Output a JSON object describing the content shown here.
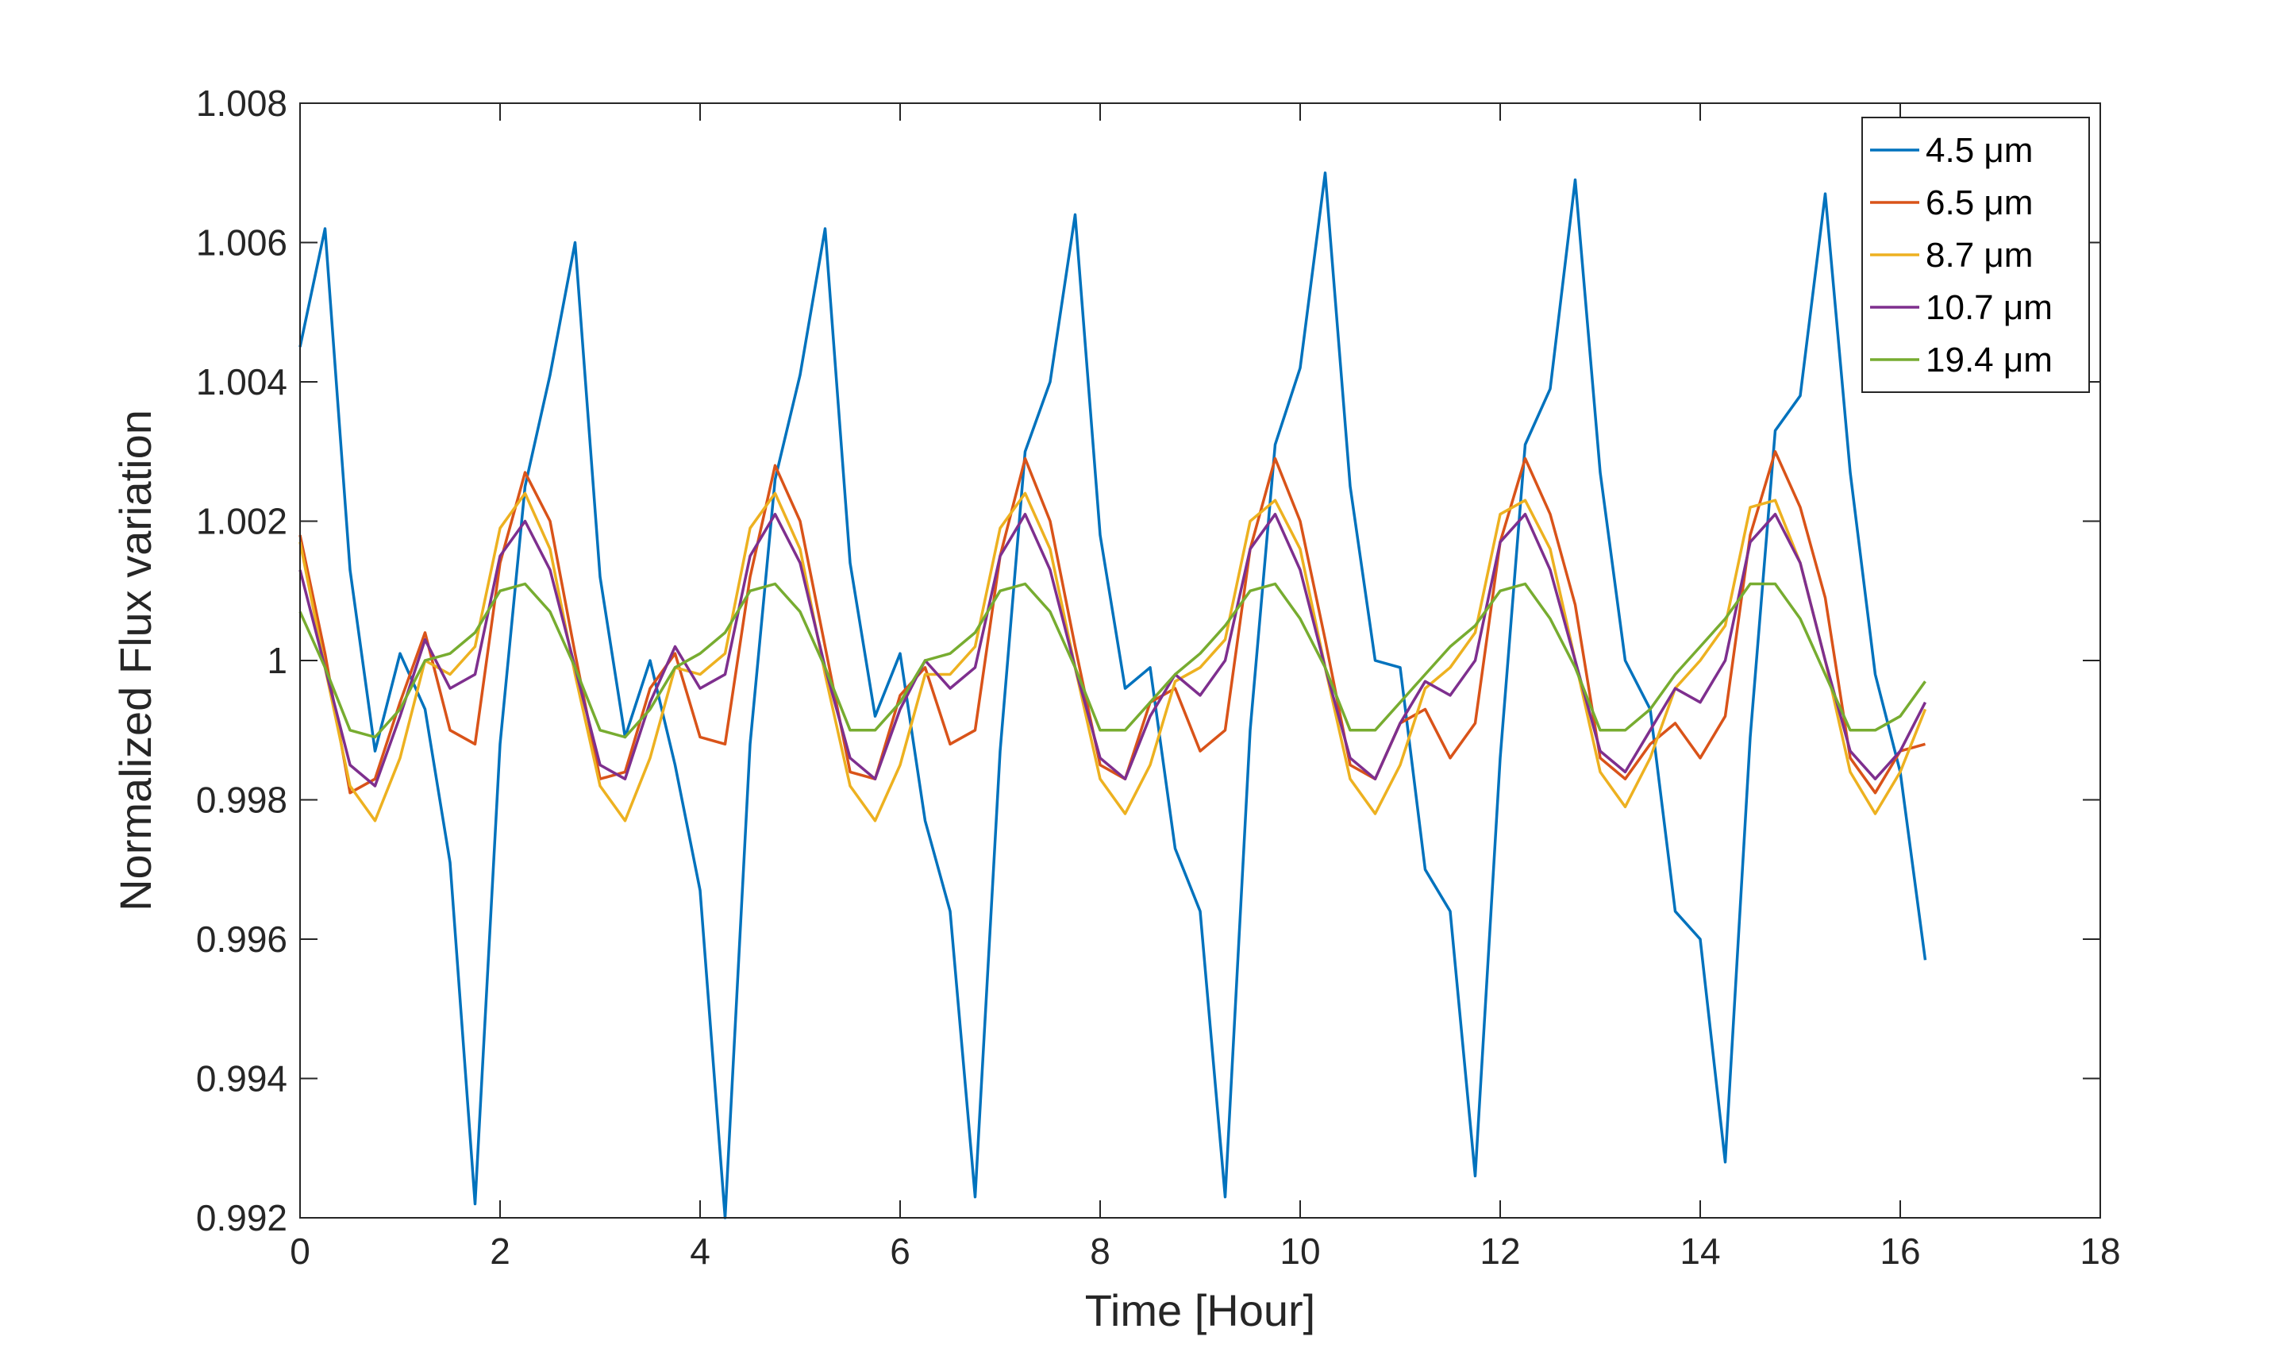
{
  "chart_data": {
    "type": "line",
    "title": "",
    "xlabel": "Time [Hour]",
    "ylabel": "Normalized Flux variation",
    "xlim": [
      0,
      18
    ],
    "ylim": [
      0.992,
      1.008
    ],
    "xticks": [
      0,
      2,
      4,
      6,
      8,
      10,
      12,
      14,
      16,
      18
    ],
    "xtick_labels": [
      "0",
      "2",
      "4",
      "6",
      "8",
      "10",
      "12",
      "14",
      "16",
      "18"
    ],
    "yticks": [
      0.992,
      0.994,
      0.996,
      0.998,
      1,
      1.002,
      1.004,
      1.006,
      1.008
    ],
    "ytick_labels": [
      "0.992",
      "0.994",
      "0.996",
      "0.998",
      "1",
      "1.002",
      "1.004",
      "1.006",
      "1.008"
    ],
    "grid": false,
    "legend_position": "top-right",
    "x": [
      0,
      0.25,
      0.5,
      0.75,
      1,
      1.25,
      1.5,
      1.75,
      2,
      2.25,
      2.5,
      2.75,
      3,
      3.25,
      3.5,
      3.75,
      4,
      4.25,
      4.5,
      4.75,
      5,
      5.25,
      5.5,
      5.75,
      6,
      6.25,
      6.5,
      6.75,
      7,
      7.25,
      7.5,
      7.75,
      8,
      8.25,
      8.5,
      8.75,
      9,
      9.25,
      9.5,
      9.75,
      10,
      10.25,
      10.5,
      10.75,
      11,
      11.25,
      11.5,
      11.75,
      12,
      12.25,
      12.5,
      12.75,
      13,
      13.25,
      13.5,
      13.75,
      14,
      14.25,
      14.5,
      14.75,
      15,
      15.25,
      15.5,
      15.75,
      16,
      16.25
    ],
    "series": [
      {
        "name": "4.5 μm",
        "color": "#0072BD",
        "values": [
          1.0045,
          1.0062,
          1.0013,
          0.9987,
          1.0001,
          0.9993,
          0.9971,
          0.9922,
          0.9988,
          1.0025,
          1.0041,
          1.006,
          1.0012,
          0.9989,
          1.0,
          0.9985,
          0.9967,
          0.992,
          0.9988,
          1.0026,
          1.0041,
          1.0062,
          1.0014,
          0.9992,
          1.0001,
          0.9977,
          0.9964,
          0.9923,
          0.9987,
          1.003,
          1.004,
          1.0064,
          1.0018,
          0.9996,
          0.9999,
          0.9973,
          0.9964,
          0.9923,
          0.999,
          1.0031,
          1.0042,
          1.007,
          1.0025,
          1.0,
          0.9999,
          0.997,
          0.9964,
          0.9926,
          0.9986,
          1.0031,
          1.0039,
          1.0069,
          1.0027,
          1.0,
          0.9993,
          0.9964,
          0.996,
          0.9928,
          0.9989,
          1.0033,
          1.0038,
          1.0067,
          1.0027,
          0.9998,
          0.9984,
          0.9957
        ]
      },
      {
        "name": "6.5 μm",
        "color": "#D95319",
        "values": [
          1.0018,
          1.0001,
          0.9981,
          0.9983,
          0.9994,
          1.0004,
          0.999,
          0.9988,
          1.0014,
          1.0027,
          1.002,
          1.0001,
          0.9983,
          0.9984,
          0.9996,
          1.0001,
          0.9989,
          0.9988,
          1.0012,
          1.0028,
          1.002,
          1.0002,
          0.9984,
          0.9983,
          0.9995,
          0.9999,
          0.9988,
          0.999,
          1.0015,
          1.0029,
          1.002,
          1.0002,
          0.9985,
          0.9983,
          0.9994,
          0.9996,
          0.9987,
          0.999,
          1.0016,
          1.0029,
          1.002,
          1.0003,
          0.9985,
          0.9983,
          0.9991,
          0.9993,
          0.9986,
          0.9991,
          1.0017,
          1.0029,
          1.0021,
          1.0008,
          0.9986,
          0.9983,
          0.9988,
          0.9991,
          0.9986,
          0.9992,
          1.0018,
          1.003,
          1.0022,
          1.0009,
          0.9986,
          0.9981,
          0.9987,
          0.9988
        ]
      },
      {
        "name": "8.7 μm",
        "color": "#EDB120",
        "values": [
          1.0017,
          0.9999,
          0.9982,
          0.9977,
          0.9986,
          1.0,
          0.9998,
          1.0002,
          1.0019,
          1.0024,
          1.0016,
          0.9998,
          0.9982,
          0.9977,
          0.9986,
          0.9999,
          0.9998,
          1.0001,
          1.0019,
          1.0024,
          1.0016,
          0.9998,
          0.9982,
          0.9977,
          0.9985,
          0.9998,
          0.9998,
          1.0002,
          1.0019,
          1.0024,
          1.0016,
          0.9999,
          0.9983,
          0.9978,
          0.9985,
          0.9997,
          0.9999,
          1.0003,
          1.002,
          1.0023,
          1.0016,
          0.9999,
          0.9983,
          0.9978,
          0.9985,
          0.9996,
          0.9999,
          1.0004,
          1.0021,
          1.0023,
          1.0016,
          1.0,
          0.9984,
          0.9979,
          0.9986,
          0.9996,
          1.0,
          1.0005,
          1.0022,
          1.0023,
          1.0014,
          1.0,
          0.9984,
          0.9978,
          0.9984,
          0.9993
        ]
      },
      {
        "name": "10.7 μm",
        "color": "#7E2F8E",
        "values": [
          1.0013,
          0.9999,
          0.9985,
          0.9982,
          0.9992,
          1.0003,
          0.9996,
          0.9998,
          1.0015,
          1.002,
          1.0013,
          0.9999,
          0.9985,
          0.9983,
          0.9994,
          1.0002,
          0.9996,
          0.9998,
          1.0015,
          1.0021,
          1.0014,
          0.9999,
          0.9986,
          0.9983,
          0.9993,
          1.0,
          0.9996,
          0.9999,
          1.0015,
          1.0021,
          1.0013,
          0.9999,
          0.9986,
          0.9983,
          0.9992,
          0.9998,
          0.9995,
          1.0,
          1.0016,
          1.0021,
          1.0013,
          0.9999,
          0.9986,
          0.9983,
          0.9991,
          0.9997,
          0.9995,
          1.0,
          1.0017,
          1.0021,
          1.0013,
          1.0,
          0.9987,
          0.9984,
          0.999,
          0.9996,
          0.9994,
          1.0,
          1.0017,
          1.0021,
          1.0014,
          1.0,
          0.9987,
          0.9983,
          0.9987,
          0.9994
        ]
      },
      {
        "name": "19.4 μm",
        "color": "#77AC30",
        "values": [
          1.0007,
          0.9999,
          0.999,
          0.9989,
          0.9993,
          1.0,
          1.0001,
          1.0004,
          1.001,
          1.0011,
          1.0007,
          0.9999,
          0.999,
          0.9989,
          0.9993,
          0.9999,
          1.0001,
          1.0004,
          1.001,
          1.0011,
          1.0007,
          0.9999,
          0.999,
          0.999,
          0.9994,
          1.0,
          1.0001,
          1.0004,
          1.001,
          1.0011,
          1.0007,
          0.9999,
          0.999,
          0.999,
          0.9994,
          0.9998,
          1.0001,
          1.0005,
          1.001,
          1.0011,
          1.0006,
          0.9999,
          0.999,
          0.999,
          0.9994,
          0.9998,
          1.0002,
          1.0005,
          1.001,
          1.0011,
          1.0006,
          0.9999,
          0.999,
          0.999,
          0.9993,
          0.9998,
          1.0002,
          1.0006,
          1.0011,
          1.0011,
          1.0006,
          0.9998,
          0.999,
          0.999,
          0.9992,
          0.9997
        ]
      }
    ]
  }
}
